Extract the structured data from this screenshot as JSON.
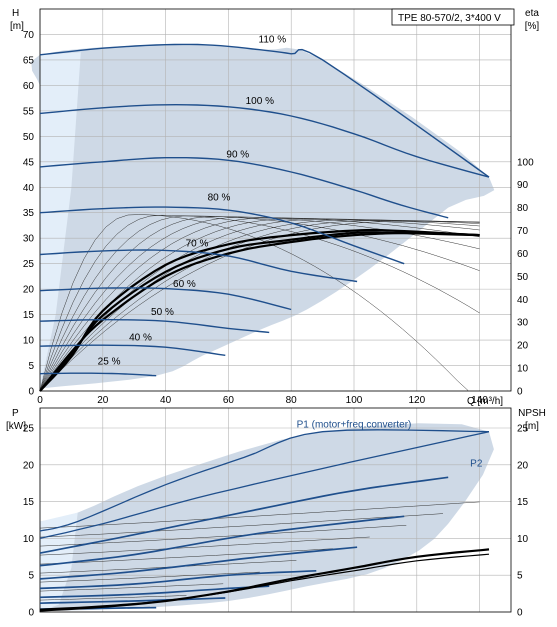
{
  "title_box": "TPE 80-570/2, 3*400 V",
  "colors": {
    "envelope": "#c9d5e3",
    "envelope_light": "#e3eef9",
    "curve_blue": "#1f4f8c",
    "thin_line": "#333333",
    "axis": "#000000",
    "grid": "#b3b3b3",
    "label_blue": "#1f4f8c"
  },
  "chart_data": [
    {
      "type": "line",
      "panel": "head",
      "y_left_label": [
        "H",
        "[m]"
      ],
      "y_right_label": [
        "eta",
        "[%]"
      ],
      "x_label": "Q [m³/h]",
      "xlim": [
        0,
        150
      ],
      "ylim": [
        0,
        75
      ],
      "x_ticks": [
        0,
        20,
        40,
        60,
        80,
        100,
        120,
        140
      ],
      "y_ticks": [
        0,
        5,
        10,
        15,
        20,
        25,
        30,
        35,
        40,
        45,
        50,
        55,
        60,
        65,
        70
      ],
      "eta_ticks": [
        0,
        10,
        20,
        30,
        40,
        50,
        60,
        70,
        80,
        90,
        100
      ],
      "eta_scale_max_at_h": 45,
      "grid": true,
      "envelope": [
        [
          0,
          60
        ],
        [
          0,
          66
        ],
        [
          40,
          68
        ],
        [
          70,
          67
        ],
        [
          90,
          65
        ],
        [
          143,
          42
        ],
        [
          130,
          36
        ],
        [
          105,
          24
        ],
        [
          85,
          16
        ],
        [
          70,
          12
        ],
        [
          52,
          7
        ],
        [
          37,
          3
        ],
        [
          0,
          0.5
        ]
      ],
      "series": [
        {
          "name": "110 %",
          "label_at": [
            74,
            68
          ],
          "values": [
            [
              0,
              66
            ],
            [
              20,
              67.3
            ],
            [
              40,
              68
            ],
            [
              55,
              67.9
            ],
            [
              70,
              67
            ],
            [
              80,
              66.2
            ],
            [
              90,
              65
            ],
            [
              143,
              42
            ]
          ]
        },
        {
          "name": "100 %",
          "label_at": [
            70,
            56
          ],
          "values": [
            [
              0,
              54.5
            ],
            [
              20,
              55.6
            ],
            [
              40,
              56.2
            ],
            [
              60,
              55.8
            ],
            [
              80,
              54
            ],
            [
              100,
              50.5
            ],
            [
              120,
              46
            ],
            [
              143,
              42
            ]
          ]
        },
        {
          "name": "90 %",
          "label_at": [
            63,
            45.5
          ],
          "values": [
            [
              0,
              44
            ],
            [
              20,
              45
            ],
            [
              40,
              45.8
            ],
            [
              60,
              45.3
            ],
            [
              80,
              43
            ],
            [
              100,
              39.5
            ],
            [
              115,
              36.5
            ],
            [
              130,
              34
            ]
          ]
        },
        {
          "name": "80 %",
          "label_at": [
            57,
            37
          ],
          "values": [
            [
              0,
              35
            ],
            [
              20,
              35.8
            ],
            [
              40,
              36.1
            ],
            [
              60,
              35.5
            ],
            [
              80,
              33
            ],
            [
              100,
              28.5
            ],
            [
              116,
              25
            ]
          ]
        },
        {
          "name": "70 %",
          "label_at": [
            50,
            28
          ],
          "values": [
            [
              0,
              26.8
            ],
            [
              20,
              27.5
            ],
            [
              40,
              27.6
            ],
            [
              60,
              26.5
            ],
            [
              80,
              23.5
            ],
            [
              101,
              21.5
            ]
          ]
        },
        {
          "name": "60 %",
          "label_at": [
            46,
            20
          ],
          "values": [
            [
              0,
              19.7
            ],
            [
              20,
              20.2
            ],
            [
              40,
              20.1
            ],
            [
              60,
              19
            ],
            [
              80,
              16
            ]
          ]
        },
        {
          "name": "50 %",
          "label_at": [
            39,
            14.5
          ],
          "values": [
            [
              0,
              13.7
            ],
            [
              20,
              14
            ],
            [
              40,
              13.7
            ],
            [
              60,
              12.3
            ],
            [
              73,
              11.5
            ]
          ]
        },
        {
          "name": "40 %",
          "label_at": [
            32,
            9.5
          ],
          "values": [
            [
              0,
              8.8
            ],
            [
              20,
              9
            ],
            [
              40,
              8.6
            ],
            [
              59,
              7
            ]
          ]
        },
        {
          "name": "25 %",
          "label_at": [
            22,
            4.8
          ],
          "values": [
            [
              0,
              3.4
            ],
            [
              12,
              3.5
            ],
            [
              25,
              3.4
            ],
            [
              37,
              3
            ]
          ]
        }
      ],
      "efficiency_family": {
        "curve_count": 11,
        "x_end": 140,
        "thick_lines": [
          {
            "x0": 0,
            "x1": 140,
            "values_eta": [
              [
                0,
                0
              ],
              [
                10,
                15
              ],
              [
                20,
                35
              ],
              [
                40,
                55
              ],
              [
                60,
                64
              ],
              [
                80,
                68
              ],
              [
                100,
                70
              ],
              [
                112,
                70
              ],
              [
                140,
                68
              ]
            ]
          },
          {
            "x0": 0,
            "x1": 140,
            "values_eta": [
              [
                0,
                0
              ],
              [
                10,
                16
              ],
              [
                20,
                33
              ],
              [
                40,
                52
              ],
              [
                60,
                62
              ],
              [
                80,
                66
              ],
              [
                100,
                69
              ],
              [
                112,
                69
              ],
              [
                140,
                68
              ]
            ]
          },
          {
            "x0": 0,
            "x1": 140,
            "values_eta": [
              [
                0,
                0
              ],
              [
                10,
                17
              ],
              [
                20,
                31
              ],
              [
                40,
                50
              ],
              [
                60,
                60
              ],
              [
                80,
                65
              ],
              [
                100,
                68
              ],
              [
                120,
                69
              ],
              [
                140,
                68
              ]
            ]
          }
        ],
        "thin_peak_eta": 77
      }
    },
    {
      "type": "line",
      "panel": "power",
      "y_left_label": [
        "P",
        "[kW]"
      ],
      "y_right_label": [
        "NPSH",
        "[m]"
      ],
      "xlim": [
        0,
        150
      ],
      "ylim": [
        0,
        25
      ],
      "x_ticks": [
        0,
        20,
        40,
        60,
        80,
        100,
        120,
        140
      ],
      "y_ticks": [
        0,
        5,
        10,
        15,
        20,
        25
      ],
      "npsh_ticks": [
        0,
        5,
        10,
        15,
        20,
        25
      ],
      "grid": true,
      "labels": [
        {
          "text": "P1 (motor+freq.converter)",
          "at": [
            100,
            25.5
          ]
        },
        {
          "text": "P2",
          "at": [
            137,
            20.2
          ]
        }
      ],
      "envelope": [
        [
          0,
          12.3
        ],
        [
          12,
          13.5
        ],
        [
          40,
          18.5
        ],
        [
          90,
          24.5
        ],
        [
          143,
          24.5
        ],
        [
          130,
          12
        ],
        [
          110,
          6
        ],
        [
          85,
          3.5
        ],
        [
          60,
          1.5
        ],
        [
          30,
          0.5
        ],
        [
          0,
          0.1
        ]
      ],
      "series": [
        {
          "name": "P1",
          "values": [
            [
              0,
              11
            ],
            [
              12,
              12.3
            ],
            [
              40,
              17.3
            ],
            [
              65,
              21
            ],
            [
              90,
              24.5
            ],
            [
              143,
              24.5
            ]
          ]
        },
        {
          "name": "P2",
          "values": [
            [
              0,
              10
            ],
            [
              20,
              12
            ],
            [
              50,
              15.5
            ],
            [
              90,
              19.5
            ],
            [
              143,
              24.5
            ]
          ]
        },
        {
          "values": [
            [
              0,
              8
            ],
            [
              30,
              10.5
            ],
            [
              70,
              14
            ],
            [
              100,
              16.5
            ],
            [
              130,
              18.3
            ]
          ]
        },
        {
          "values": [
            [
              0,
              6.3
            ],
            [
              30,
              7.8
            ],
            [
              70,
              10.7
            ],
            [
              116,
              13
            ]
          ]
        },
        {
          "values": [
            [
              0,
              4.5
            ],
            [
              30,
              5.5
            ],
            [
              70,
              7.5
            ],
            [
              101,
              8.8
            ]
          ]
        },
        {
          "values": [
            [
              0,
              3.2
            ],
            [
              30,
              3.8
            ],
            [
              60,
              5
            ],
            [
              88,
              5.6
            ]
          ]
        },
        {
          "values": [
            [
              0,
              2
            ],
            [
              30,
              2.4
            ],
            [
              60,
              3.2
            ],
            [
              73,
              3.5
            ]
          ]
        },
        {
          "values": [
            [
              0,
              1.2
            ],
            [
              30,
              1.5
            ],
            [
              59,
              1.9
            ]
          ]
        },
        {
          "values": [
            [
              0,
              0.4
            ],
            [
              20,
              0.5
            ],
            [
              37,
              0.6
            ]
          ]
        }
      ],
      "npsh": [
        [
          0,
          0.2
        ],
        [
          20,
          0.7
        ],
        [
          40,
          1.5
        ],
        [
          60,
          2.8
        ],
        [
          80,
          4.5
        ],
        [
          100,
          6
        ],
        [
          120,
          7.5
        ],
        [
          143,
          8.5
        ]
      ]
    }
  ]
}
